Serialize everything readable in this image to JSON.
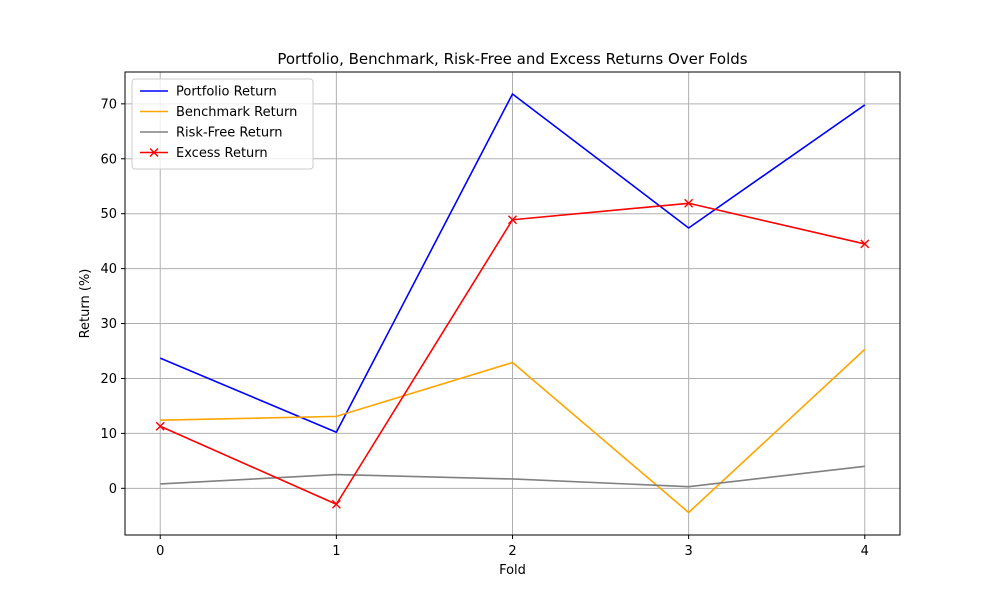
{
  "chart_data": {
    "type": "line",
    "title": "Portfolio, Benchmark, Risk-Free and Excess Returns Over Folds",
    "xlabel": "Fold",
    "ylabel": "Return (%)",
    "x": [
      0,
      1,
      2,
      3,
      4
    ],
    "xticks": [
      "0",
      "1",
      "2",
      "3",
      "4"
    ],
    "xlim": [
      -0.2,
      4.2
    ],
    "yticks": [
      "0",
      "10",
      "20",
      "30",
      "40",
      "50",
      "60",
      "70"
    ],
    "ylim": [
      -8.5,
      75.8
    ],
    "grid": true,
    "legend_position": "top-left",
    "series": [
      {
        "name": "Portfolio Return",
        "color": "#0000ff",
        "marker": "none",
        "values": [
          23.7,
          10.2,
          71.8,
          47.4,
          69.8
        ]
      },
      {
        "name": "Benchmark Return",
        "color": "#ffa500",
        "marker": "none",
        "values": [
          12.4,
          13.1,
          22.9,
          -4.4,
          25.3
        ]
      },
      {
        "name": "Risk-Free Return",
        "color": "#808080",
        "marker": "none",
        "values": [
          0.8,
          2.5,
          1.7,
          0.3,
          4.0
        ]
      },
      {
        "name": "Excess Return",
        "color": "#ff0000",
        "marker": "x",
        "values": [
          11.3,
          -2.9,
          48.9,
          51.9,
          44.5
        ]
      }
    ]
  }
}
